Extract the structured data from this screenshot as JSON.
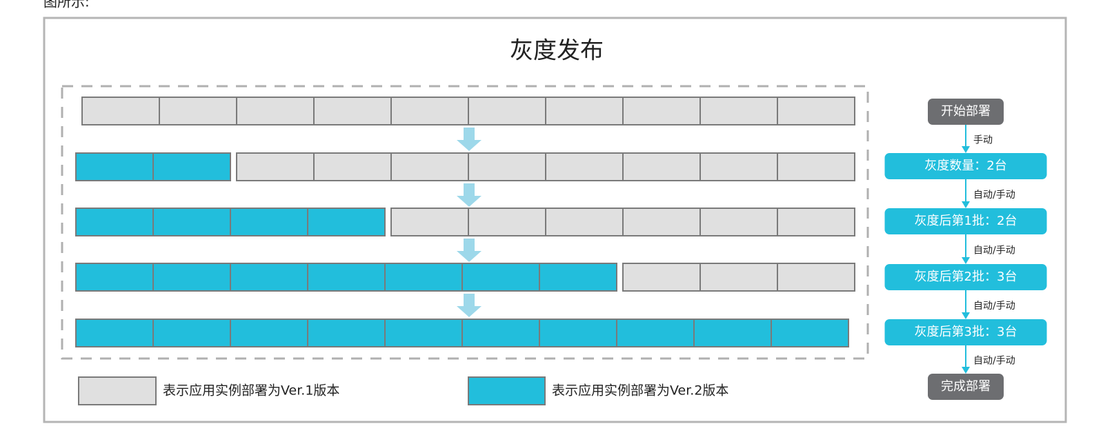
{
  "header": {
    "caption": "图所示:"
  },
  "diagram": {
    "title": "灰度发布",
    "legend": [
      {
        "label": "表示应用实例部署为Ver.1版本"
      },
      {
        "label": "表示应用实例部署为Ver.2版本"
      }
    ],
    "flow": {
      "nodes": [
        {
          "label": "开始部署"
        },
        {
          "label": "灰度数量：2台"
        },
        {
          "label": "灰度后第1批：2台"
        },
        {
          "label": "灰度后第2批：3台"
        },
        {
          "label": "灰度后第3批：3台"
        },
        {
          "label": "完成部署"
        }
      ],
      "edges": [
        {
          "label": "手动"
        },
        {
          "label": "自动/手动"
        },
        {
          "label": "自动/手动"
        },
        {
          "label": "自动/手动"
        },
        {
          "label": "自动/手动"
        }
      ]
    }
  }
}
